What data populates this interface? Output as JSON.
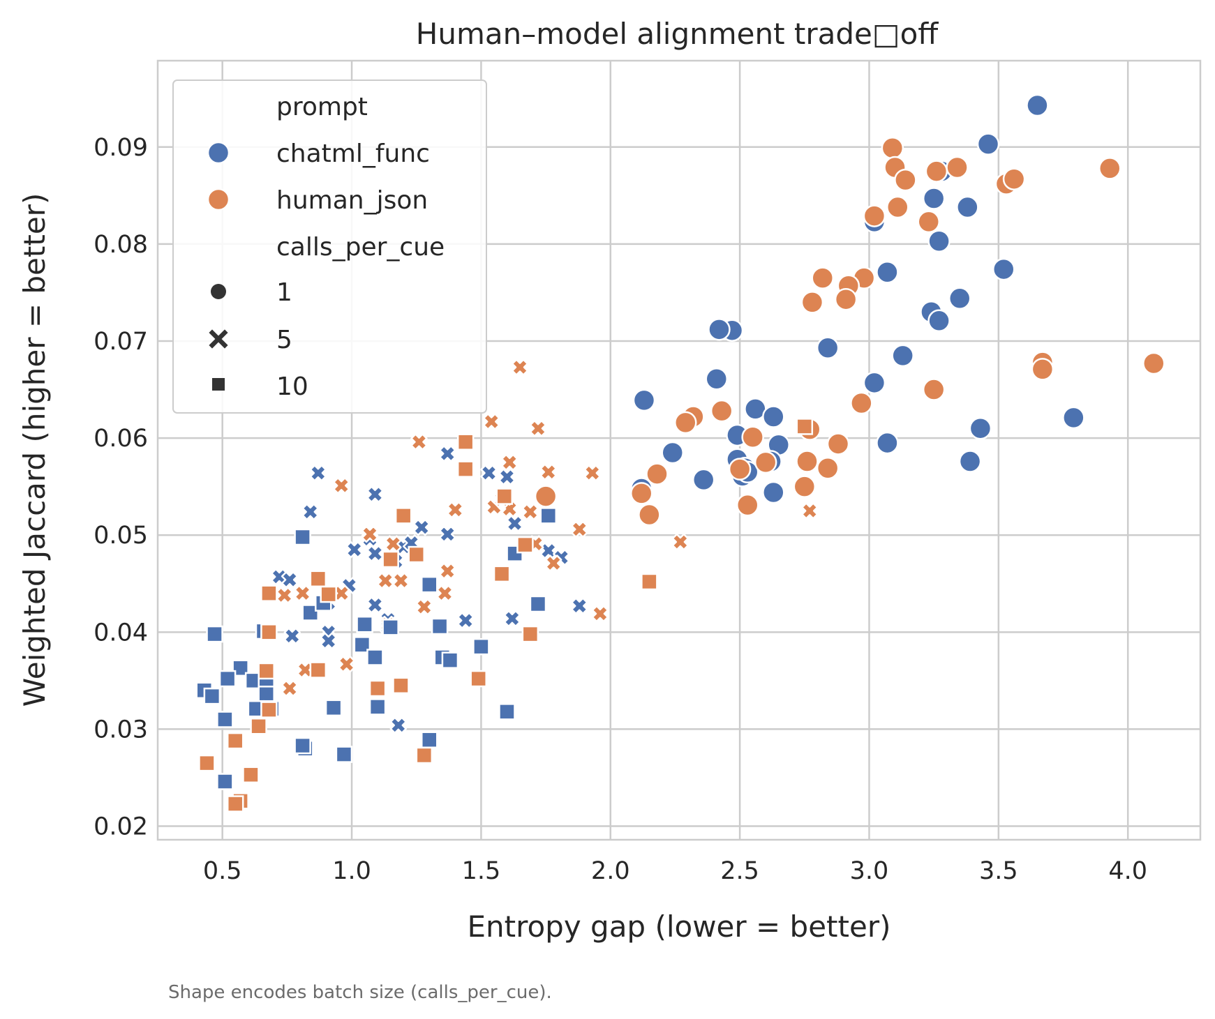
{
  "chart_data": {
    "type": "scatter",
    "title": "Human–model alignment trade□off",
    "xlabel": "Entropy gap  (lower = better)",
    "ylabel": "Weighted Jaccard  (higher = better)",
    "xlim": [
      0.25,
      4.28
    ],
    "ylim": [
      0.0186,
      0.0989
    ],
    "xticks": [
      0.5,
      1.0,
      1.5,
      2.0,
      2.5,
      3.0,
      3.5,
      4.0
    ],
    "xtick_labels": [
      "0.5",
      "1.0",
      "1.5",
      "2.0",
      "2.5",
      "3.0",
      "3.5",
      "4.0"
    ],
    "yticks": [
      0.02,
      0.03,
      0.04,
      0.05,
      0.06,
      0.07,
      0.08,
      0.09
    ],
    "ytick_labels": [
      "0.02",
      "0.03",
      "0.04",
      "0.05",
      "0.06",
      "0.07",
      "0.08",
      "0.09"
    ],
    "grid": true,
    "legend_position": "top-left",
    "footnote": "Shape encodes batch size (calls_per_cue).",
    "legend": {
      "hue_title": "prompt",
      "hue_entries": [
        {
          "label": "chatml_func",
          "color": "#4c72b0"
        },
        {
          "label": "human_json",
          "color": "#dd8452"
        }
      ],
      "style_title": "calls_per_cue",
      "style_entries": [
        {
          "label": "1",
          "marker": "circle"
        },
        {
          "label": "5",
          "marker": "x"
        },
        {
          "label": "10",
          "marker": "square"
        }
      ]
    },
    "series": [
      {
        "name": "chatml_func",
        "calls_per_cue": "1",
        "color": "#4c72b0",
        "marker": "circle",
        "points": [
          [
            3.65,
            0.0943
          ],
          [
            3.46,
            0.0903
          ],
          [
            3.28,
            0.0875
          ],
          [
            3.25,
            0.0847
          ],
          [
            3.38,
            0.0838
          ],
          [
            3.02,
            0.0823
          ],
          [
            3.27,
            0.0803
          ],
          [
            3.07,
            0.0771
          ],
          [
            3.52,
            0.0774
          ],
          [
            3.35,
            0.0744
          ],
          [
            3.24,
            0.073
          ],
          [
            3.27,
            0.0721
          ],
          [
            2.47,
            0.0711
          ],
          [
            2.42,
            0.0712
          ],
          [
            2.84,
            0.0693
          ],
          [
            3.13,
            0.0685
          ],
          [
            3.02,
            0.0657
          ],
          [
            2.41,
            0.0661
          ],
          [
            2.13,
            0.0639
          ],
          [
            2.56,
            0.063
          ],
          [
            2.63,
            0.0622
          ],
          [
            3.79,
            0.0621
          ],
          [
            3.43,
            0.061
          ],
          [
            2.49,
            0.0603
          ],
          [
            2.65,
            0.0593
          ],
          [
            3.07,
            0.0595
          ],
          [
            2.24,
            0.0585
          ],
          [
            2.49,
            0.0578
          ],
          [
            2.62,
            0.0576
          ],
          [
            3.39,
            0.0576
          ],
          [
            2.52,
            0.0569
          ],
          [
            2.36,
            0.0557
          ],
          [
            2.51,
            0.0561
          ],
          [
            2.53,
            0.0565
          ],
          [
            2.63,
            0.0544
          ],
          [
            2.12,
            0.0548
          ]
        ]
      },
      {
        "name": "human_json",
        "calls_per_cue": "1",
        "color": "#dd8452",
        "marker": "circle",
        "points": [
          [
            3.09,
            0.0899
          ],
          [
            3.1,
            0.0879
          ],
          [
            3.26,
            0.0875
          ],
          [
            3.34,
            0.0879
          ],
          [
            3.93,
            0.0878
          ],
          [
            3.14,
            0.0866
          ],
          [
            3.53,
            0.0862
          ],
          [
            3.56,
            0.0867
          ],
          [
            3.11,
            0.0838
          ],
          [
            3.02,
            0.0829
          ],
          [
            3.23,
            0.0823
          ],
          [
            2.98,
            0.0765
          ],
          [
            2.82,
            0.0765
          ],
          [
            2.92,
            0.0757
          ],
          [
            2.91,
            0.0743
          ],
          [
            2.78,
            0.074
          ],
          [
            3.67,
            0.0678
          ],
          [
            3.67,
            0.0671
          ],
          [
            4.1,
            0.0677
          ],
          [
            3.25,
            0.065
          ],
          [
            2.97,
            0.0636
          ],
          [
            2.43,
            0.0628
          ],
          [
            2.32,
            0.0622
          ],
          [
            2.29,
            0.0616
          ],
          [
            2.55,
            0.0601
          ],
          [
            2.77,
            0.0609
          ],
          [
            2.88,
            0.0594
          ],
          [
            2.6,
            0.0575
          ],
          [
            2.76,
            0.0576
          ],
          [
            2.84,
            0.0569
          ],
          [
            2.5,
            0.0568
          ],
          [
            2.18,
            0.0563
          ],
          [
            2.75,
            0.055
          ],
          [
            2.12,
            0.0543
          ],
          [
            2.53,
            0.0531
          ],
          [
            2.15,
            0.0521
          ],
          [
            1.75,
            0.054
          ]
        ]
      },
      {
        "name": "chatml_func",
        "calls_per_cue": "5",
        "color": "#4c72b0",
        "marker": "x",
        "points": [
          [
            0.87,
            0.0564
          ],
          [
            0.84,
            0.0524
          ],
          [
            1.09,
            0.0542
          ],
          [
            1.37,
            0.0584
          ],
          [
            1.53,
            0.0564
          ],
          [
            1.6,
            0.056
          ],
          [
            1.63,
            0.0512
          ],
          [
            1.27,
            0.0508
          ],
          [
            1.37,
            0.0501
          ],
          [
            1.2,
            0.0488
          ],
          [
            1.01,
            0.0485
          ],
          [
            1.09,
            0.0481
          ],
          [
            1.07,
            0.0496
          ],
          [
            1.17,
            0.0473
          ],
          [
            1.23,
            0.0492
          ],
          [
            1.76,
            0.0484
          ],
          [
            1.81,
            0.0477
          ],
          [
            0.72,
            0.0457
          ],
          [
            0.76,
            0.0454
          ],
          [
            0.99,
            0.0448
          ],
          [
            0.91,
            0.043
          ],
          [
            1.09,
            0.0428
          ],
          [
            1.14,
            0.0413
          ],
          [
            1.14,
            0.0405
          ],
          [
            0.91,
            0.04
          ],
          [
            0.91,
            0.0391
          ],
          [
            0.77,
            0.0396
          ],
          [
            1.44,
            0.0412
          ],
          [
            1.62,
            0.0414
          ],
          [
            1.88,
            0.0427
          ],
          [
            1.18,
            0.0304
          ]
        ]
      },
      {
        "name": "human_json",
        "calls_per_cue": "5",
        "color": "#dd8452",
        "marker": "x",
        "points": [
          [
            1.65,
            0.0673
          ],
          [
            1.26,
            0.0596
          ],
          [
            1.54,
            0.0617
          ],
          [
            1.72,
            0.061
          ],
          [
            1.61,
            0.0575
          ],
          [
            1.76,
            0.0565
          ],
          [
            1.93,
            0.0564
          ],
          [
            0.96,
            0.0551
          ],
          [
            1.55,
            0.0529
          ],
          [
            1.61,
            0.0527
          ],
          [
            1.58,
            0.0537
          ],
          [
            1.69,
            0.0524
          ],
          [
            1.4,
            0.0526
          ],
          [
            1.88,
            0.0506
          ],
          [
            1.07,
            0.0501
          ],
          [
            1.16,
            0.0491
          ],
          [
            1.71,
            0.0491
          ],
          [
            1.78,
            0.0471
          ],
          [
            1.13,
            0.0453
          ],
          [
            1.19,
            0.0453
          ],
          [
            1.37,
            0.0463
          ],
          [
            0.81,
            0.044
          ],
          [
            0.74,
            0.0438
          ],
          [
            0.96,
            0.044
          ],
          [
            0.82,
            0.0361
          ],
          [
            0.76,
            0.0342
          ],
          [
            0.98,
            0.0367
          ],
          [
            1.28,
            0.0426
          ],
          [
            1.96,
            0.0419
          ],
          [
            1.14,
            0.0408
          ],
          [
            2.27,
            0.0493
          ],
          [
            2.77,
            0.0525
          ],
          [
            1.36,
            0.044
          ]
        ]
      },
      {
        "name": "chatml_func",
        "calls_per_cue": "10",
        "color": "#4c72b0",
        "marker": "square",
        "points": [
          [
            0.81,
            0.0498
          ],
          [
            1.76,
            0.052
          ],
          [
            1.63,
            0.0481
          ],
          [
            1.3,
            0.0449
          ],
          [
            1.72,
            0.0429
          ],
          [
            0.84,
            0.042
          ],
          [
            0.89,
            0.043
          ],
          [
            1.05,
            0.0408
          ],
          [
            1.34,
            0.0406
          ],
          [
            1.15,
            0.0405
          ],
          [
            1.5,
            0.0385
          ],
          [
            1.04,
            0.0387
          ],
          [
            1.35,
            0.0374
          ],
          [
            1.38,
            0.0371
          ],
          [
            1.09,
            0.0374
          ],
          [
            0.47,
            0.0398
          ],
          [
            0.66,
            0.0401
          ],
          [
            0.57,
            0.0363
          ],
          [
            0.52,
            0.0352
          ],
          [
            0.62,
            0.035
          ],
          [
            0.67,
            0.0345
          ],
          [
            0.67,
            0.0336
          ],
          [
            0.43,
            0.034
          ],
          [
            0.46,
            0.0334
          ],
          [
            0.69,
            0.0321
          ],
          [
            0.63,
            0.0321
          ],
          [
            0.93,
            0.0322
          ],
          [
            1.1,
            0.0323
          ],
          [
            1.6,
            0.0318
          ],
          [
            0.51,
            0.031
          ],
          [
            1.3,
            0.0289
          ],
          [
            0.82,
            0.028
          ],
          [
            0.81,
            0.0283
          ],
          [
            0.97,
            0.0274
          ],
          [
            0.51,
            0.0246
          ]
        ]
      },
      {
        "name": "human_json",
        "calls_per_cue": "10",
        "color": "#dd8452",
        "marker": "square",
        "points": [
          [
            1.44,
            0.0596
          ],
          [
            1.44,
            0.0568
          ],
          [
            1.59,
            0.054
          ],
          [
            1.2,
            0.052
          ],
          [
            1.25,
            0.048
          ],
          [
            1.15,
            0.0475
          ],
          [
            1.67,
            0.049
          ],
          [
            0.87,
            0.0455
          ],
          [
            1.58,
            0.046
          ],
          [
            0.68,
            0.044
          ],
          [
            0.91,
            0.0439
          ],
          [
            2.15,
            0.0452
          ],
          [
            1.69,
            0.0398
          ],
          [
            0.68,
            0.04
          ],
          [
            1.49,
            0.0352
          ],
          [
            0.87,
            0.0361
          ],
          [
            0.67,
            0.036
          ],
          [
            0.68,
            0.032
          ],
          [
            1.19,
            0.0345
          ],
          [
            1.1,
            0.0342
          ],
          [
            0.64,
            0.0303
          ],
          [
            0.55,
            0.0288
          ],
          [
            0.44,
            0.0265
          ],
          [
            0.61,
            0.0253
          ],
          [
            1.28,
            0.0273
          ],
          [
            0.57,
            0.0226
          ],
          [
            0.55,
            0.0223
          ],
          [
            2.75,
            0.0612
          ]
        ]
      }
    ]
  }
}
